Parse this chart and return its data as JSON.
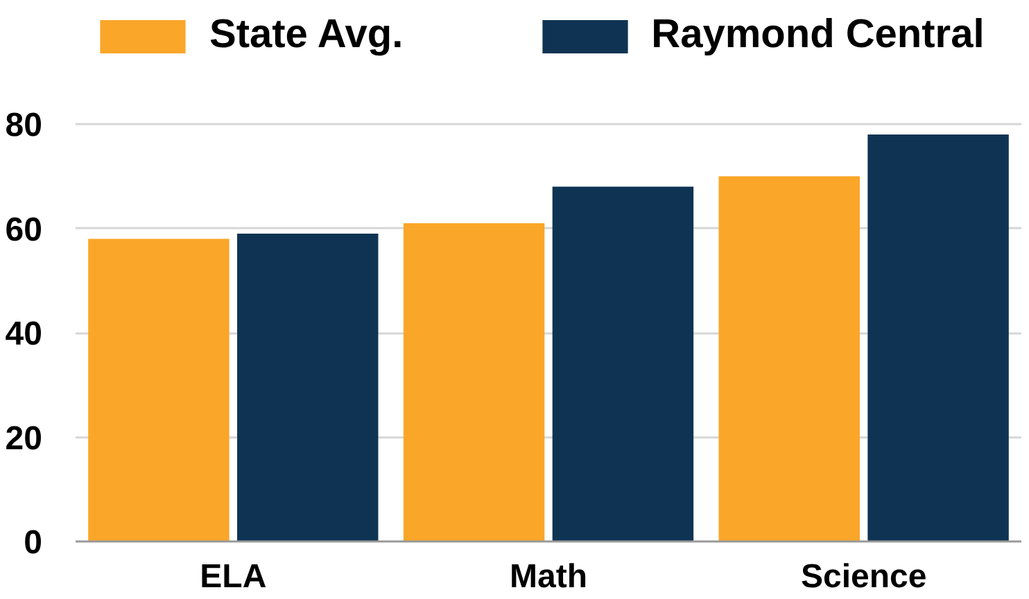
{
  "chart_data": {
    "type": "bar",
    "categories": [
      "ELA",
      "Math",
      "Science"
    ],
    "series": [
      {
        "name": "State Avg.",
        "color": "#faa629",
        "values": [
          58,
          61,
          70
        ]
      },
      {
        "name": "Raymond Central",
        "color": "#0f3453",
        "values": [
          59,
          68,
          78
        ]
      }
    ],
    "ylim": [
      0,
      80
    ],
    "yticks": [
      0,
      20,
      40,
      60,
      80
    ],
    "grid": "y",
    "legend": "top"
  }
}
